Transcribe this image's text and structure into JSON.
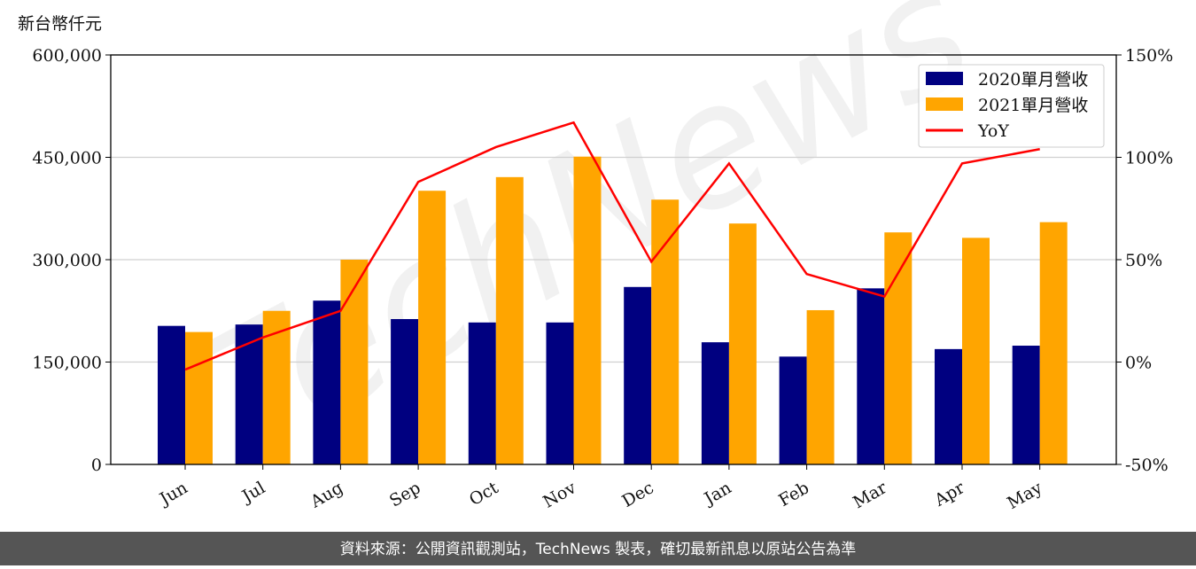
{
  "chart_data": {
    "type": "bar_line",
    "unit_label": "新台幣仟元",
    "watermark": "TechNews",
    "source": "資料來源：公開資訊觀測站，TechNews 製表，確切最新訊息以原站公告為準",
    "categories": [
      "Jun",
      "Jul",
      "Aug",
      "Sep",
      "Oct",
      "Nov",
      "Dec",
      "Jan",
      "Feb",
      "Mar",
      "Apr",
      "May"
    ],
    "series": [
      {
        "name": "2020單月營收",
        "color": "#000080",
        "type": "bar",
        "values": [
          203000,
          205000,
          240000,
          213000,
          208000,
          208000,
          260000,
          179000,
          158000,
          258000,
          169000,
          174000
        ]
      },
      {
        "name": "2021單月營收",
        "color": "#ffa500",
        "type": "bar",
        "values": [
          194000,
          225000,
          300000,
          401000,
          421000,
          451000,
          388000,
          353000,
          226000,
          340000,
          332000,
          355000
        ]
      },
      {
        "name": "YoY",
        "color": "#ff0000",
        "type": "line",
        "axis": "y2",
        "values": [
          -3.7,
          12,
          25,
          88,
          105,
          117,
          49,
          97,
          43,
          32,
          97,
          104
        ]
      }
    ],
    "ylim": [
      0,
      600000
    ],
    "yticks": [
      {
        "value": 0,
        "label": "0"
      },
      {
        "value": 150000,
        "label": "150,000"
      },
      {
        "value": 300000,
        "label": "300,000"
      },
      {
        "value": 450000,
        "label": "450,000"
      },
      {
        "value": 600000,
        "label": "600,000"
      }
    ],
    "y2lim": [
      -50,
      150
    ],
    "y2ticks": [
      {
        "value": -50,
        "label": "-50%"
      },
      {
        "value": 0,
        "label": "0%"
      },
      {
        "value": 50,
        "label": "50%"
      },
      {
        "value": 100,
        "label": "100%"
      },
      {
        "value": 150,
        "label": "150%"
      }
    ],
    "grid": true,
    "legend": "upper right"
  }
}
